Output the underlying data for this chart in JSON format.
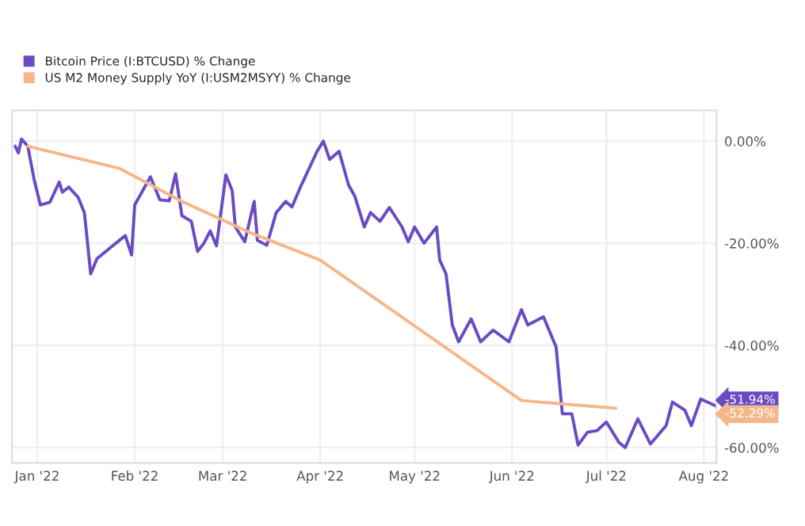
{
  "chart_data": {
    "type": "line",
    "series": [
      {
        "name": "Bitcoin Price (I:BTCUSD) % Change",
        "color": "#6a4bc4",
        "x": [
          "2021-12-25",
          "2021-12-26",
          "2021-12-27",
          "2021-12-29",
          "2021-12-31",
          "2022-01-02",
          "2022-01-05",
          "2022-01-08",
          "2022-01-09",
          "2022-01-11",
          "2022-01-14",
          "2022-01-16",
          "2022-01-18",
          "2022-01-20",
          "2022-01-22",
          "2022-01-25",
          "2022-01-28",
          "2022-01-29",
          "2022-01-31",
          "2022-02-01",
          "2022-02-06",
          "2022-02-09",
          "2022-02-12",
          "2022-02-14",
          "2022-02-16",
          "2022-02-19",
          "2022-02-21",
          "2022-02-23",
          "2022-02-25",
          "2022-02-27",
          "2022-03-02",
          "2022-03-04",
          "2022-03-05",
          "2022-03-08",
          "2022-03-11",
          "2022-03-12",
          "2022-03-15",
          "2022-03-18",
          "2022-03-21",
          "2022-03-23",
          "2022-03-26",
          "2022-03-31",
          "2022-04-02",
          "2022-04-04",
          "2022-04-07",
          "2022-04-10",
          "2022-04-12",
          "2022-04-15",
          "2022-04-17",
          "2022-04-20",
          "2022-04-23",
          "2022-04-27",
          "2022-04-29",
          "2022-05-01",
          "2022-05-04",
          "2022-05-08",
          "2022-05-09",
          "2022-05-11",
          "2022-05-13",
          "2022-05-15",
          "2022-05-19",
          "2022-05-22",
          "2022-05-26",
          "2022-05-31",
          "2022-06-04",
          "2022-06-06",
          "2022-06-11",
          "2022-06-15",
          "2022-06-17",
          "2022-06-20",
          "2022-06-22",
          "2022-06-25",
          "2022-06-28",
          "2022-07-01",
          "2022-07-05",
          "2022-07-07",
          "2022-07-11",
          "2022-07-15",
          "2022-07-20",
          "2022-07-22",
          "2022-07-26",
          "2022-07-28",
          "2022-07-31",
          "2022-08-05"
        ],
        "values": [
          -1.0,
          -2.3,
          0.4,
          -1.0,
          -7.5,
          -12.5,
          -12,
          -8,
          -10,
          -9,
          -11,
          -14,
          -26,
          -23,
          -22,
          -20.5,
          -19,
          -18.5,
          -22.3,
          -12.5,
          -7,
          -11.5,
          -11.7,
          -6.4,
          -14.6,
          -15.7,
          -21.6,
          -20,
          -17.6,
          -20.5,
          -6.6,
          -9.7,
          -16.8,
          -19.7,
          -11.8,
          -19.4,
          -20.4,
          -14,
          -11.8,
          -12.9,
          -8.6,
          -2,
          0,
          -3.6,
          -2,
          -8.6,
          -10.8,
          -16.8,
          -14,
          -15.7,
          -13,
          -16.8,
          -19.7,
          -16.8,
          -20,
          -16.8,
          -23.3,
          -26,
          -36,
          -39.3,
          -34.8,
          -39.3,
          -37,
          -39.3,
          -33,
          -36,
          -34.4,
          -40.3,
          -53.4,
          -53.4,
          -59.5,
          -57,
          -56.7,
          -55,
          -59,
          -60,
          -54.4,
          -59.3,
          -55.7,
          -51.1,
          -52.7,
          -55.7,
          -50.5,
          -51.9
        ]
      },
      {
        "name": "US M2 Money Supply YoY (I:USM2MSYY) % Change",
        "color": "#f5b78a",
        "x": [
          "2021-12-29",
          "2022-01-27",
          "2022-02-16",
          "2022-03-10",
          "2022-04-01",
          "2022-06-04",
          "2022-07-04"
        ],
        "values": [
          -1.0,
          -5.3,
          -11.8,
          -18,
          -23.3,
          -50.8,
          -52.3
        ]
      }
    ],
    "annotations": [
      "-51.94%",
      "-52.29%"
    ],
    "xlim": [
      "2021-12-24",
      "2022-08-05"
    ],
    "xticks": [
      {
        "value": "2022-01-01",
        "label": "Jan '22"
      },
      {
        "value": "2022-02-01",
        "label": "Feb '22"
      },
      {
        "value": "2022-03-01",
        "label": "Mar '22"
      },
      {
        "value": "2022-04-01",
        "label": "Apr '22"
      },
      {
        "value": "2022-05-01",
        "label": "May '22"
      },
      {
        "value": "2022-06-01",
        "label": "Jun '22"
      },
      {
        "value": "2022-07-01",
        "label": "Jul '22"
      },
      {
        "value": "2022-08-01",
        "label": "Aug '22"
      }
    ],
    "ylim": [
      -63,
      6
    ],
    "yticks": [
      {
        "value": 0,
        "label": "0.00%"
      },
      {
        "value": -20,
        "label": "-20.00%"
      },
      {
        "value": -40,
        "label": "-40.00%"
      },
      {
        "value": -60,
        "label": "-60.00%"
      }
    ],
    "grid": true,
    "legend": "top left",
    "marker": "none",
    "line_style": "solid"
  }
}
